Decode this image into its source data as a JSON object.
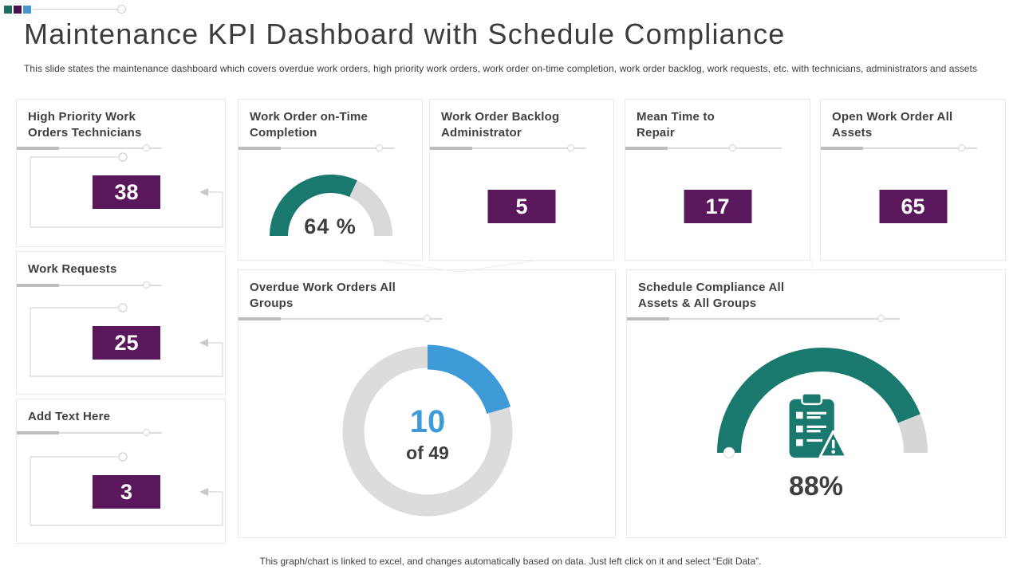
{
  "slide": {
    "title": "Maintenance KPI Dashboard with Schedule Compliance",
    "subtitle": "This slide states the maintenance dashboard which covers overdue work orders, high priority work orders, work order on-time completion, work order backlog, work requests, etc. with technicians, administrators and assets",
    "footer": "This graph/chart is linked to excel,  and changes automatically based on data. Just left click on it and select “Edit Data”."
  },
  "colors": {
    "teal": "#1a796f",
    "purple": "#5b175b",
    "blue": "#3f9bd8",
    "track_gray": "#d9d9d9",
    "deco_teal": "#1d6e62",
    "deco_purple": "#4a1150",
    "deco_blue": "#4497cf"
  },
  "icons": {
    "schedule_compliance": "clipboard-warning-icon"
  },
  "kpi": {
    "high_priority": {
      "title": "High Priority Work Orders Technicians",
      "value": "38"
    },
    "work_requests": {
      "title": "Work Requests",
      "value": "25"
    },
    "add_text": {
      "title": "Add Text Here",
      "value": "3"
    },
    "backlog": {
      "title": "Work Order Backlog Administrator",
      "value": "5"
    },
    "mean_time": {
      "title": "Mean Time to Repair",
      "value": "17"
    },
    "open_orders": {
      "title": "Open Work Order All Assets",
      "value": "65"
    }
  },
  "chart_data": [
    {
      "type": "gauge",
      "title": "Work Order on-Time Completion",
      "value": 64,
      "max": 100,
      "label": "64 %",
      "start_angle_deg": 180,
      "end_angle_deg": 0,
      "color": "#1a796f",
      "track_color": "#d9d9d9",
      "legend": "none",
      "grid": false
    },
    {
      "type": "donut",
      "title": "Overdue Work Orders All Groups",
      "value": 10,
      "total": 49,
      "center_value_label": "10",
      "center_sub_label": "of 49",
      "start_angle_deg": 90,
      "direction": "clockwise",
      "color": "#3f9bd8",
      "track_color": "#dcdcdc",
      "legend": "none",
      "grid": false
    },
    {
      "type": "gauge",
      "title": "Schedule Compliance All Assets & All Groups",
      "value": 88,
      "max": 100,
      "label": "88%",
      "start_angle_deg": 180,
      "end_angle_deg": 0,
      "color": "#1a796f",
      "track_color": "#d6d6d6",
      "legend": "none",
      "grid": false
    }
  ]
}
